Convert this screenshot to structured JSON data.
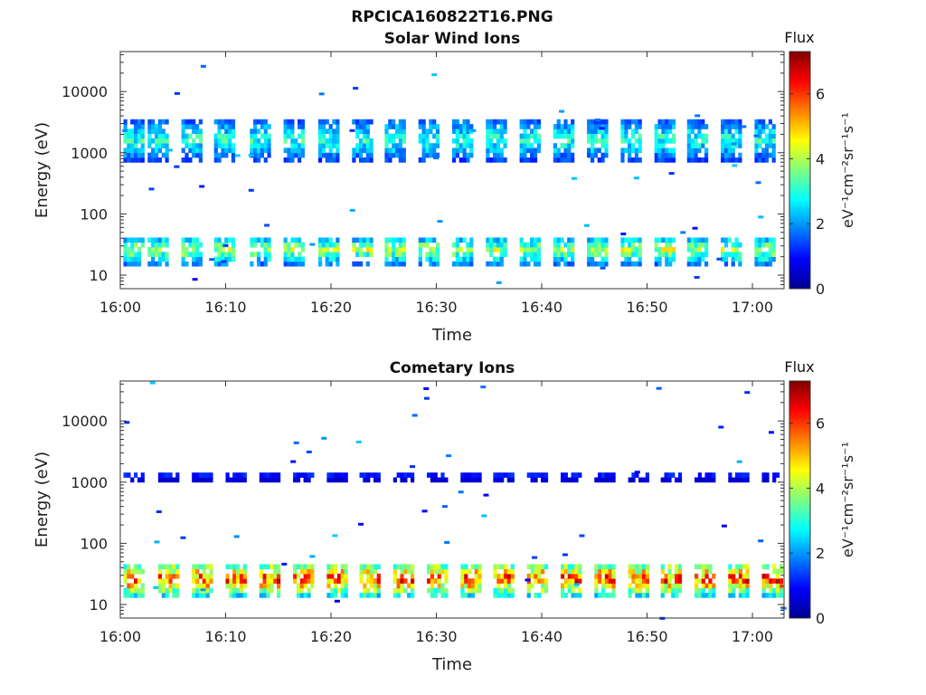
{
  "figure": {
    "title": "RPCICA160822T16.PNG"
  },
  "chart_data": [
    {
      "type": "heatmap",
      "title": "Solar Wind Ions",
      "xlabel": "Time",
      "ylabel": "Energy (eV)",
      "x_tick_labels": [
        "16:00",
        "16:10",
        "16:20",
        "16:30",
        "16:40",
        "16:50",
        "17:00"
      ],
      "y_tick_labels": [
        "10",
        "100",
        "1000",
        "10000"
      ],
      "y_scale": "log",
      "xlim_minutes": [
        0,
        63
      ],
      "ylim": [
        6,
        45000
      ],
      "colorbar": {
        "label": "Flux",
        "unit": "eV⁻¹cm⁻²sr⁻¹s⁻¹",
        "ticks": [
          "0",
          "2",
          "4",
          "6"
        ],
        "range": [
          0,
          7.3
        ],
        "colormap": "jet"
      },
      "burst_times_min": [
        0.3,
        2.6,
        5.8,
        8.9,
        12.3,
        15.5,
        18.8,
        22.0,
        25.1,
        28.3,
        31.5,
        34.7,
        37.9,
        41.1,
        44.3,
        47.5,
        50.7,
        53.8,
        57.0,
        60.2
      ],
      "bands": [
        {
          "name": "solar-wind-ions",
          "energy_range_eV": [
            700,
            3300
          ],
          "peak_flux": 3.5
        },
        {
          "name": "low-energy-ions",
          "energy_range_eV": [
            14,
            40
          ],
          "peak_flux": 4.5
        }
      ]
    },
    {
      "type": "heatmap",
      "title": "Cometary Ions",
      "xlabel": "Time",
      "ylabel": "Energy (eV)",
      "x_tick_labels": [
        "16:00",
        "16:10",
        "16:20",
        "16:30",
        "16:40",
        "16:50",
        "17:00"
      ],
      "y_tick_labels": [
        "10",
        "100",
        "1000",
        "10000"
      ],
      "y_scale": "log",
      "xlim_minutes": [
        0,
        63
      ],
      "ylim": [
        6,
        45000
      ],
      "colorbar": {
        "label": "Flux",
        "unit": "eV⁻¹cm⁻²sr⁻¹s⁻¹",
        "ticks": [
          "0",
          "2",
          "4",
          "6"
        ],
        "range": [
          0,
          7.3
        ],
        "colormap": "jet"
      },
      "burst_times_min": [
        0.3,
        3.6,
        6.8,
        10.0,
        13.2,
        16.4,
        19.6,
        22.7,
        25.9,
        29.1,
        32.3,
        35.4,
        38.6,
        41.8,
        45.0,
        48.2,
        51.3,
        54.5,
        57.7,
        60.9
      ],
      "bands": [
        {
          "name": "sparse-high-energy",
          "energy_range_eV": [
            1000,
            1300
          ],
          "peak_flux": 1.5
        },
        {
          "name": "cometary-ions",
          "energy_range_eV": [
            13,
            45
          ],
          "peak_flux": 6.8
        }
      ]
    }
  ]
}
